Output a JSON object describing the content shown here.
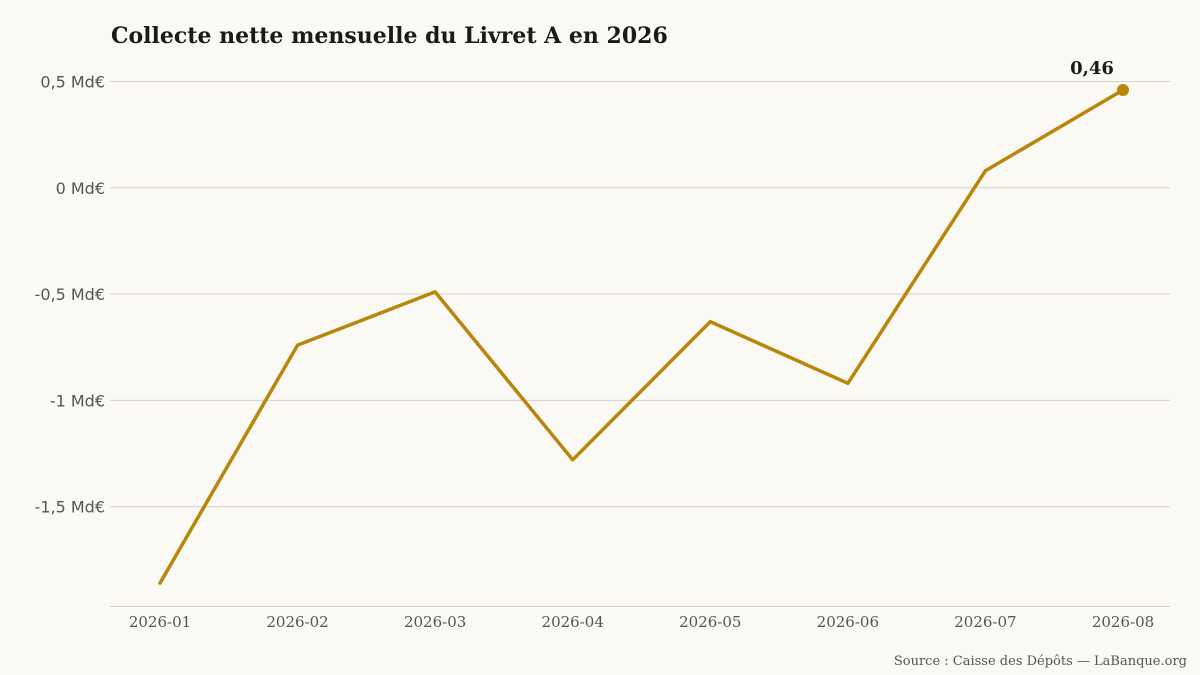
{
  "colors": {
    "background": "#fbf9f3",
    "line": "#b8860b",
    "grid": "#d4d1c8",
    "text": "#1a1a1a"
  },
  "chart_data": {
    "type": "line",
    "title": "Collecte nette mensuelle du Livret A en 2026",
    "x": [
      "2026-01",
      "2026-02",
      "2026-03",
      "2026-04",
      "2026-05",
      "2026-06",
      "2026-07",
      "2026-08"
    ],
    "series": [
      {
        "values": [
          -1.86,
          -0.74,
          -0.49,
          -1.28,
          -0.63,
          -0.92,
          0.08,
          0.46
        ]
      }
    ],
    "y_ticks": [
      {
        "value": 0.5,
        "label": "0,5 Md€"
      },
      {
        "value": 0,
        "label": "0 Md€"
      },
      {
        "value": -0.5,
        "label": "-0,5 Md€"
      },
      {
        "value": -1,
        "label": "-1 Md€"
      },
      {
        "value": -1.5,
        "label": "-1,5 Md€"
      }
    ],
    "ylim": [
      -1.97,
      0.5
    ],
    "last_point_label": "0,46",
    "grid": true,
    "source": "Source : Caisse des Dépôts — LaBanque.org"
  }
}
